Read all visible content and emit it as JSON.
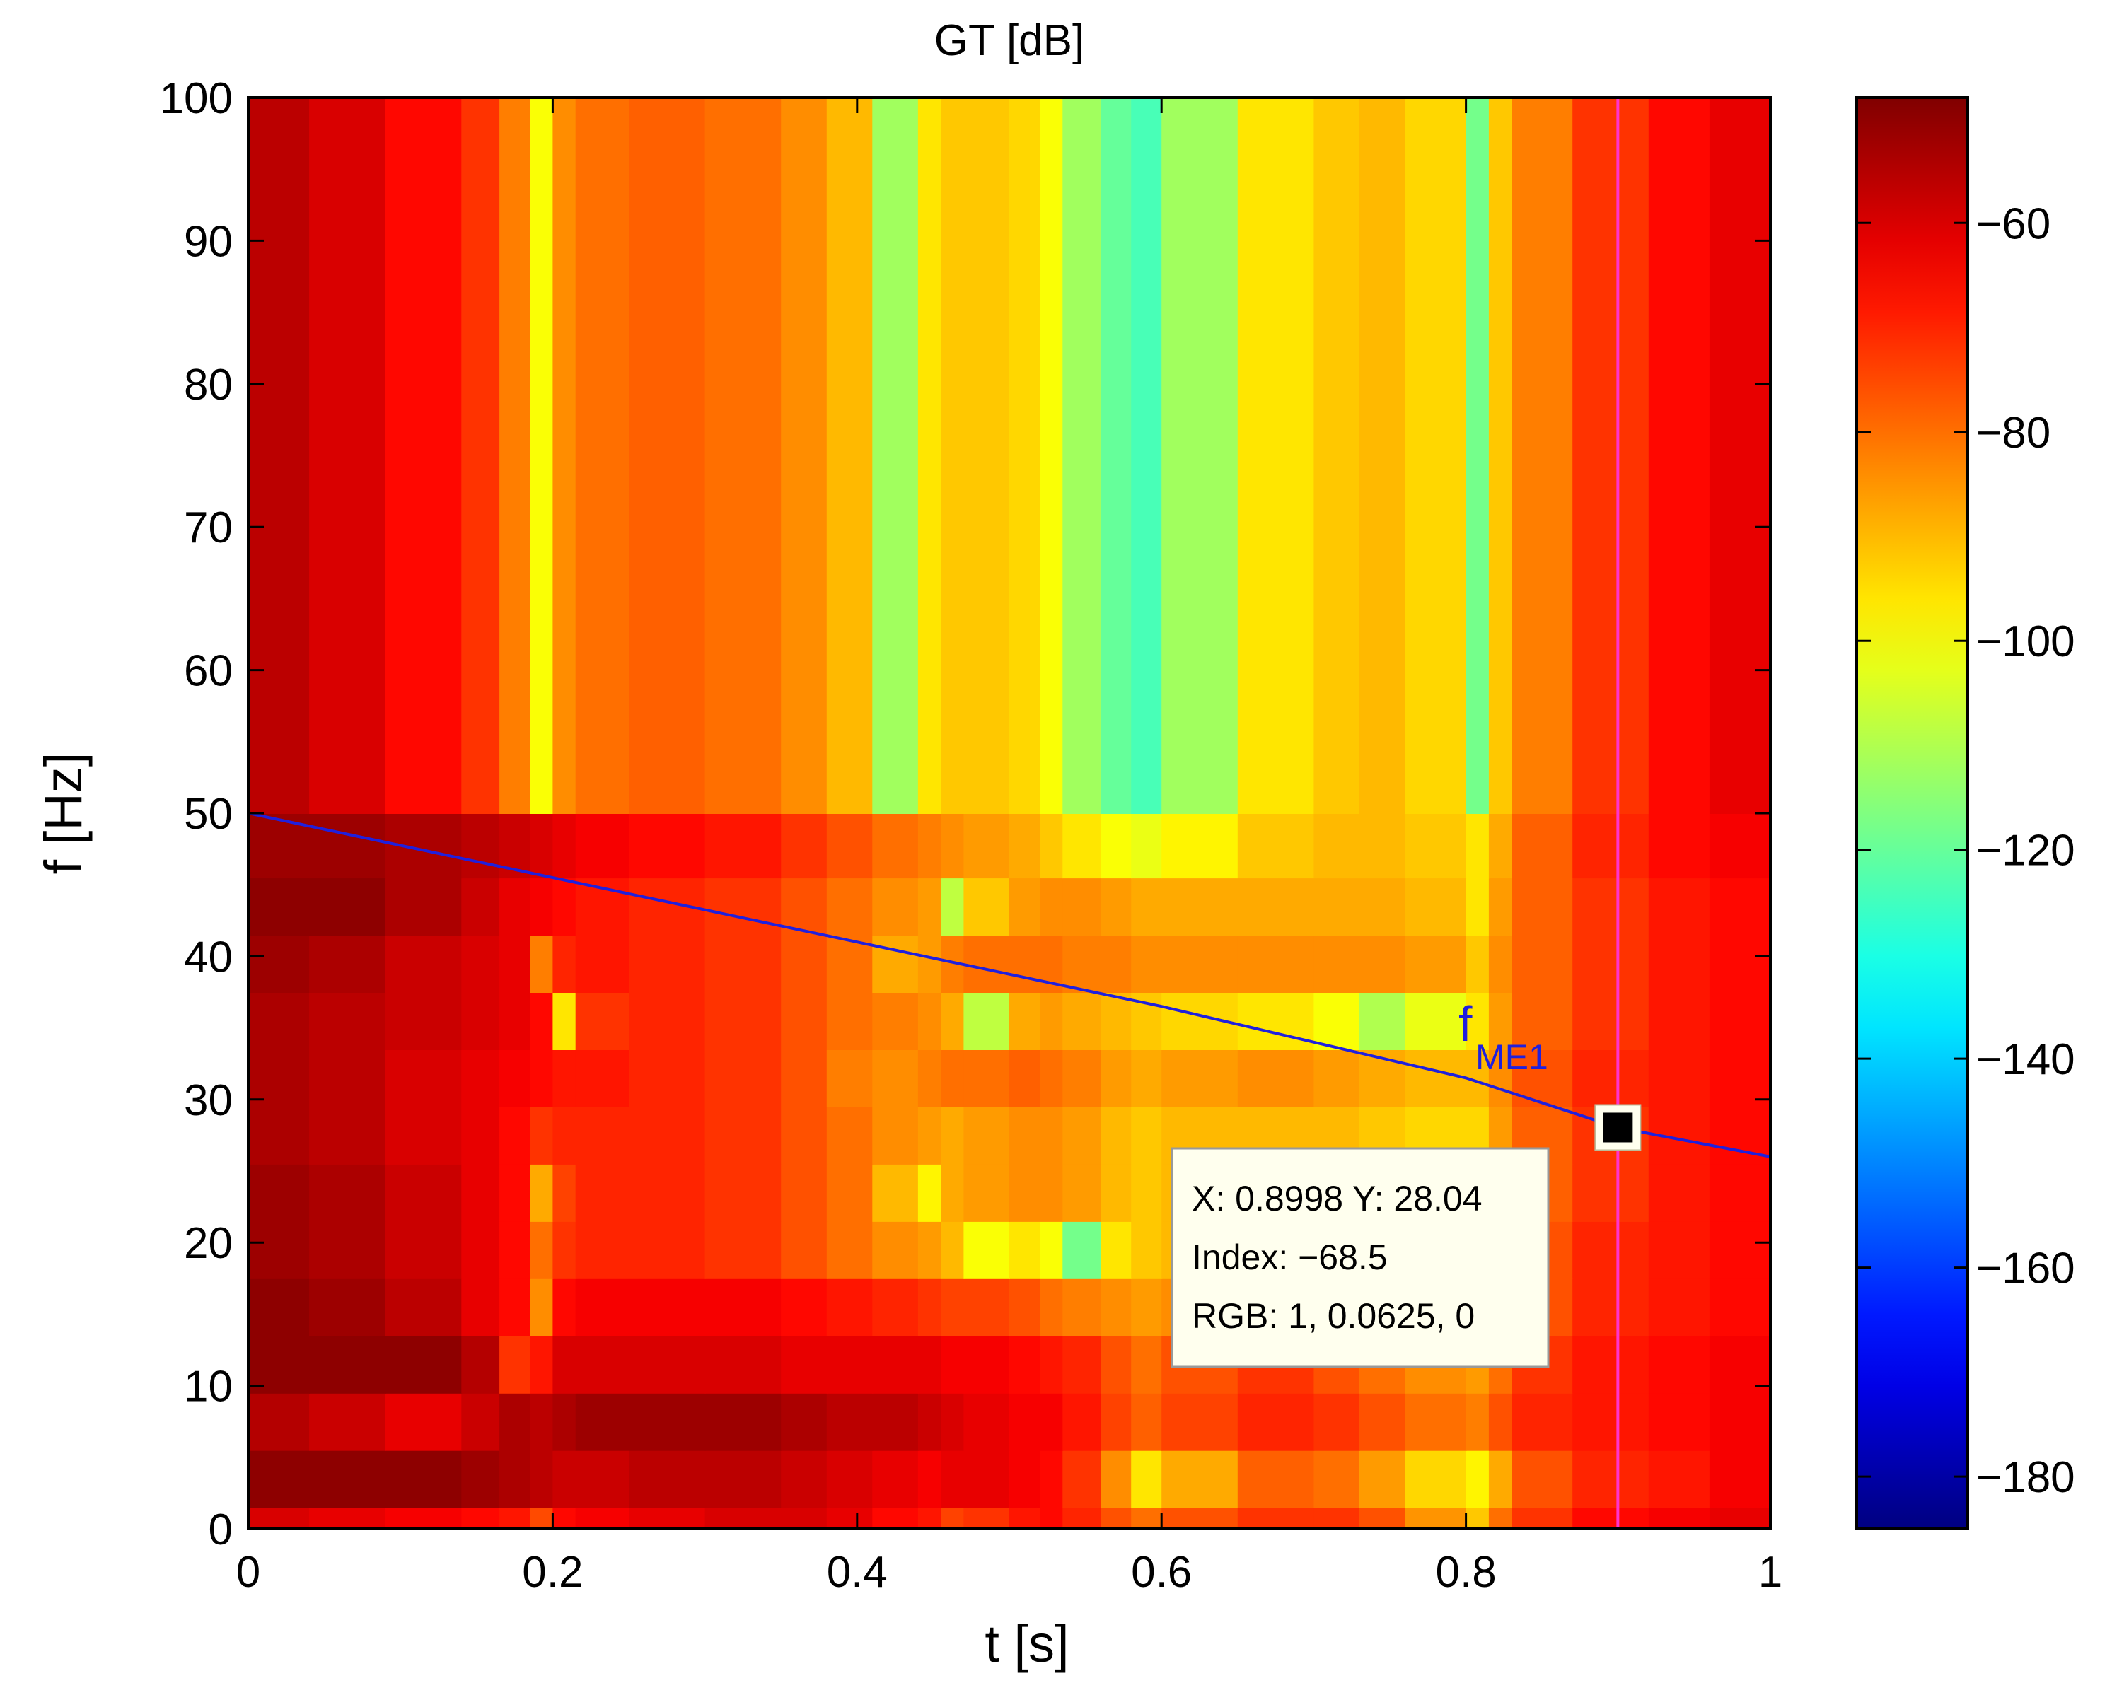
{
  "chart_data": {
    "type": "heatmap",
    "title": "GT [dB]",
    "xlabel": "t [s]",
    "ylabel": "f [Hz]",
    "xlim": [
      0,
      1
    ],
    "ylim": [
      0,
      100
    ],
    "x_ticks": [
      0,
      0.2,
      0.4,
      0.6,
      0.8,
      1
    ],
    "y_ticks": [
      0,
      10,
      20,
      30,
      40,
      50,
      60,
      70,
      80,
      90,
      100
    ],
    "x_tick_labels": [
      "0",
      "0.2",
      "0.4",
      "0.6",
      "0.8",
      "1"
    ],
    "y_tick_labels": [
      "0",
      "10",
      "20",
      "30",
      "40",
      "50",
      "60",
      "70",
      "80",
      "90",
      "100"
    ],
    "colormap": "jet",
    "clim": [
      -185,
      -48
    ],
    "colorbar_ticks": [
      -60,
      -80,
      -100,
      -120,
      -140,
      -160,
      -180
    ],
    "colorbar_tick_labels": [
      "−60",
      "−80",
      "−100",
      "−120",
      "−140",
      "−160",
      "−180"
    ],
    "row_edges_hz": [
      0,
      1.5,
      5.5,
      9.5,
      13.5,
      17.5,
      21.5,
      25.5,
      29.5,
      33.5,
      37.5,
      41.5,
      45.5,
      50,
      100
    ],
    "col_edges_s": [
      0,
      0.04,
      0.09,
      0.14,
      0.165,
      0.185,
      0.2,
      0.215,
      0.25,
      0.3,
      0.35,
      0.38,
      0.41,
      0.44,
      0.455,
      0.47,
      0.5,
      0.52,
      0.535,
      0.56,
      0.58,
      0.6,
      0.65,
      0.7,
      0.73,
      0.76,
      0.8,
      0.815,
      0.83,
      0.87,
      0.92,
      0.96,
      1.0
    ],
    "gt_db_rows": [
      [
        -60,
        -62,
        -64,
        -66,
        -68,
        -75,
        -66,
        -64,
        -62,
        -60,
        -60,
        -62,
        -66,
        -68,
        -74,
        -72,
        -68,
        -66,
        -70,
        -76,
        -80,
        -76,
        -72,
        -72,
        -76,
        -85,
        -92,
        -80,
        -72,
        -66,
        -64,
        -62
      ],
      [
        -50,
        -50,
        -50,
        -52,
        -54,
        -56,
        -58,
        -58,
        -56,
        -56,
        -58,
        -60,
        -62,
        -64,
        -62,
        -62,
        -64,
        -66,
        -72,
        -84,
        -96,
        -88,
        -78,
        -80,
        -86,
        -94,
        -98,
        -88,
        -76,
        -70,
        -68,
        -64
      ],
      [
        -55,
        -58,
        -62,
        -58,
        -54,
        -56,
        -54,
        -52,
        -52,
        -52,
        -54,
        -56,
        -56,
        -58,
        -60,
        -62,
        -64,
        -64,
        -68,
        -74,
        -78,
        -74,
        -70,
        -72,
        -76,
        -80,
        -82,
        -76,
        -70,
        -68,
        -66,
        -64
      ],
      [
        -50,
        -50,
        -50,
        -55,
        -72,
        -68,
        -60,
        -60,
        -60,
        -60,
        -62,
        -62,
        -62,
        -62,
        -64,
        -64,
        -66,
        -68,
        -70,
        -76,
        -80,
        -76,
        -72,
        -76,
        -80,
        -84,
        -86,
        -80,
        -72,
        -68,
        -66,
        -64
      ],
      [
        -50,
        -52,
        -56,
        -62,
        -66,
        -84,
        -66,
        -64,
        -64,
        -64,
        -66,
        -68,
        -70,
        -72,
        -74,
        -74,
        -76,
        -80,
        -82,
        -84,
        -86,
        -84,
        -80,
        -82,
        -84,
        -86,
        -88,
        -82,
        -76,
        -70,
        -68,
        -66
      ],
      [
        -52,
        -54,
        -58,
        -62,
        -66,
        -80,
        -72,
        -70,
        -70,
        -72,
        -76,
        -80,
        -84,
        -86,
        -90,
        -100,
        -96,
        -100,
        -118,
        -96,
        -92,
        -90,
        -88,
        -86,
        -88,
        -90,
        -90,
        -84,
        -76,
        -70,
        -68,
        -66
      ],
      [
        -52,
        -54,
        -58,
        -62,
        -66,
        -88,
        -74,
        -70,
        -70,
        -72,
        -76,
        -80,
        -90,
        -98,
        -88,
        -86,
        -84,
        -84,
        -86,
        -90,
        -92,
        -90,
        -88,
        -88,
        -90,
        -92,
        -92,
        -84,
        -78,
        -72,
        -68,
        -66
      ],
      [
        -54,
        -56,
        -60,
        -62,
        -66,
        -72,
        -70,
        -70,
        -70,
        -72,
        -76,
        -80,
        -84,
        -86,
        -88,
        -86,
        -84,
        -84,
        -86,
        -90,
        -92,
        -90,
        -90,
        -90,
        -92,
        -94,
        -94,
        -86,
        -78,
        -72,
        -68,
        -66
      ],
      [
        -54,
        -56,
        -60,
        -62,
        -64,
        -66,
        -68,
        -68,
        -70,
        -72,
        -76,
        -82,
        -84,
        -82,
        -80,
        -80,
        -78,
        -80,
        -82,
        -86,
        -88,
        -86,
        -84,
        -86,
        -88,
        -90,
        -90,
        -84,
        -76,
        -70,
        -68,
        -66
      ],
      [
        -54,
        -56,
        -58,
        -60,
        -62,
        -66,
        -96,
        -72,
        -70,
        -72,
        -76,
        -80,
        -82,
        -84,
        -88,
        -108,
        -88,
        -86,
        -88,
        -90,
        -92,
        -94,
        -96,
        -100,
        -110,
        -102,
        -96,
        -86,
        -78,
        -72,
        -68,
        -66
      ],
      [
        -52,
        -54,
        -58,
        -60,
        -62,
        -82,
        -70,
        -68,
        -70,
        -72,
        -76,
        -80,
        -88,
        -86,
        -82,
        -80,
        -80,
        -80,
        -82,
        -82,
        -84,
        -84,
        -84,
        -84,
        -84,
        -86,
        -92,
        -84,
        -78,
        -72,
        -68,
        -66
      ],
      [
        -50,
        -50,
        -54,
        -58,
        -62,
        -64,
        -66,
        -68,
        -70,
        -72,
        -76,
        -80,
        -84,
        -86,
        -108,
        -92,
        -86,
        -84,
        -84,
        -86,
        -88,
        -88,
        -88,
        -88,
        -88,
        -90,
        -96,
        -86,
        -78,
        -72,
        -68,
        -66
      ],
      [
        -52,
        -52,
        -54,
        -56,
        -58,
        -60,
        -62,
        -64,
        -66,
        -68,
        -72,
        -76,
        -80,
        -82,
        -84,
        -86,
        -88,
        -92,
        -96,
        -100,
        -102,
        -98,
        -92,
        -90,
        -90,
        -92,
        -96,
        -88,
        -78,
        -70,
        -66,
        -64
      ],
      [
        -56,
        -60,
        -66,
        -72,
        -82,
        -100,
        -84,
        -80,
        -78,
        -80,
        -84,
        -90,
        -112,
        -96,
        -92,
        -92,
        -94,
        -100,
        -112,
        -120,
        -124,
        -112,
        -96,
        -92,
        -90,
        -94,
        -118,
        -92,
        -82,
        -72,
        -66,
        -62
      ]
    ],
    "series": [
      {
        "name": "f_ME1",
        "x": [
          0,
          0.2,
          0.4,
          0.6,
          0.8,
          0.8998,
          1.0
        ],
        "y": [
          50,
          45.5,
          41,
          36.5,
          31.5,
          28.04,
          26
        ]
      }
    ],
    "annotations": {
      "curve_label_main": "f",
      "curve_label_sub": "ME1",
      "cursor_x": 0.8998,
      "cursor_y": 28.04,
      "datatip_line1": "X: 0.8998 Y: 28.04",
      "datatip_line2": "Index: −68.5",
      "datatip_line3": "RGB: 1, 0.0625, 0"
    },
    "colors": {
      "curve": "#2020dd",
      "cursor_line": "#ff33cc",
      "datatip_bg": "#ffffee"
    }
  }
}
